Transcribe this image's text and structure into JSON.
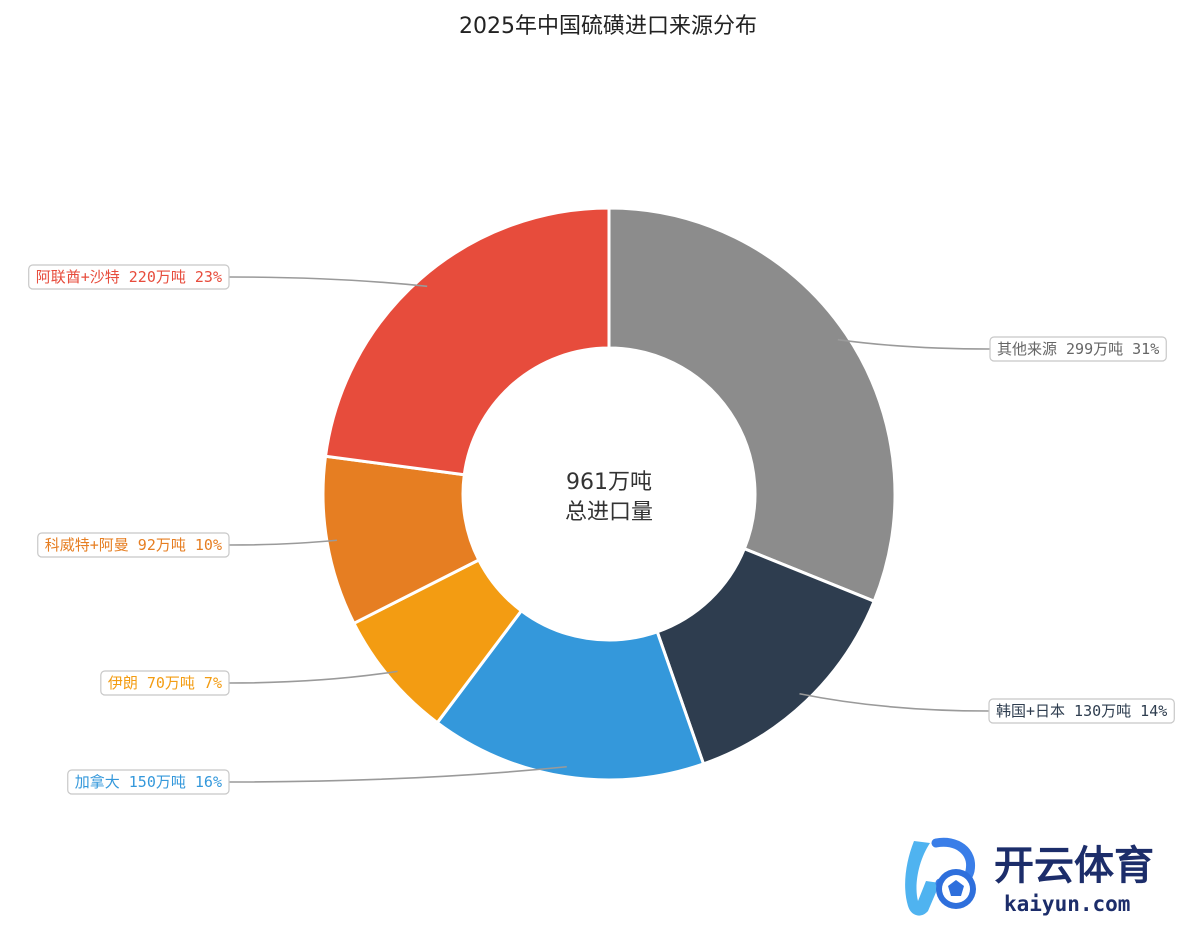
{
  "chart_data": {
    "type": "pie",
    "title": "2025年中国硫磺进口来源分布",
    "center_label": [
      "961万吨",
      "总进口量"
    ],
    "slices": [
      {
        "label": "其他来源",
        "value": 299,
        "unit": "万吨",
        "percent": "31%",
        "color": "#8c8c8c"
      },
      {
        "label": "韩国+日本",
        "value": 130,
        "unit": "万吨",
        "percent": "14%",
        "color": "#2e3d4f"
      },
      {
        "label": "加拿大",
        "value": 150,
        "unit": "万吨",
        "percent": "16%",
        "color": "#3498db"
      },
      {
        "label": "伊朗",
        "value": 70,
        "unit": "万吨",
        "percent": "7%",
        "color": "#f39c12"
      },
      {
        "label": "科威特+阿曼",
        "value": 92,
        "unit": "万吨",
        "percent": "10%",
        "color": "#e67e22"
      },
      {
        "label": "阿联酋+沙特",
        "value": 220,
        "unit": "万吨",
        "percent": "23%",
        "color": "#e74c3c"
      }
    ],
    "label_colors": [
      "#666666",
      "#2e3d4f",
      "#3498db",
      "#f39c12",
      "#e67e22",
      "#e74c3c"
    ],
    "legend": "none"
  },
  "watermark": {
    "text_cn": "开云体育",
    "text_en": "kaiyun.com"
  }
}
